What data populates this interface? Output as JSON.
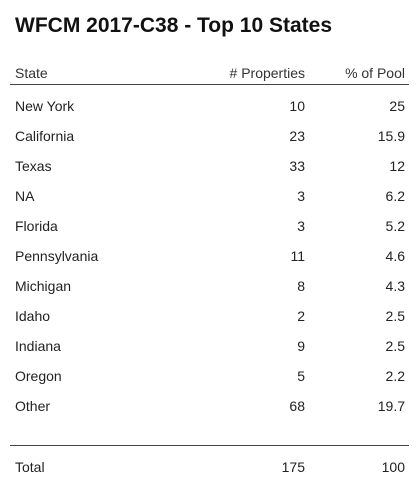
{
  "title": "WFCM 2017-C38 - Top 10 States",
  "chart_data": {
    "type": "table",
    "columns": [
      "State",
      "# Properties",
      "% of Pool"
    ],
    "rows": [
      {
        "state": "New York",
        "properties": "10",
        "pool": "25"
      },
      {
        "state": "California",
        "properties": "23",
        "pool": "15.9"
      },
      {
        "state": "Texas",
        "properties": "33",
        "pool": "12"
      },
      {
        "state": "NA",
        "properties": "3",
        "pool": "6.2"
      },
      {
        "state": "Florida",
        "properties": "3",
        "pool": "5.2"
      },
      {
        "state": "Pennsylvania",
        "properties": "11",
        "pool": "4.6"
      },
      {
        "state": "Michigan",
        "properties": "8",
        "pool": "4.3"
      },
      {
        "state": "Idaho",
        "properties": "2",
        "pool": "2.5"
      },
      {
        "state": "Indiana",
        "properties": "9",
        "pool": "2.5"
      },
      {
        "state": "Oregon",
        "properties": "5",
        "pool": "2.2"
      },
      {
        "state": "Other",
        "properties": "68",
        "pool": "19.7"
      }
    ],
    "total": {
      "state": "Total",
      "properties": "175",
      "pool": "100"
    }
  }
}
